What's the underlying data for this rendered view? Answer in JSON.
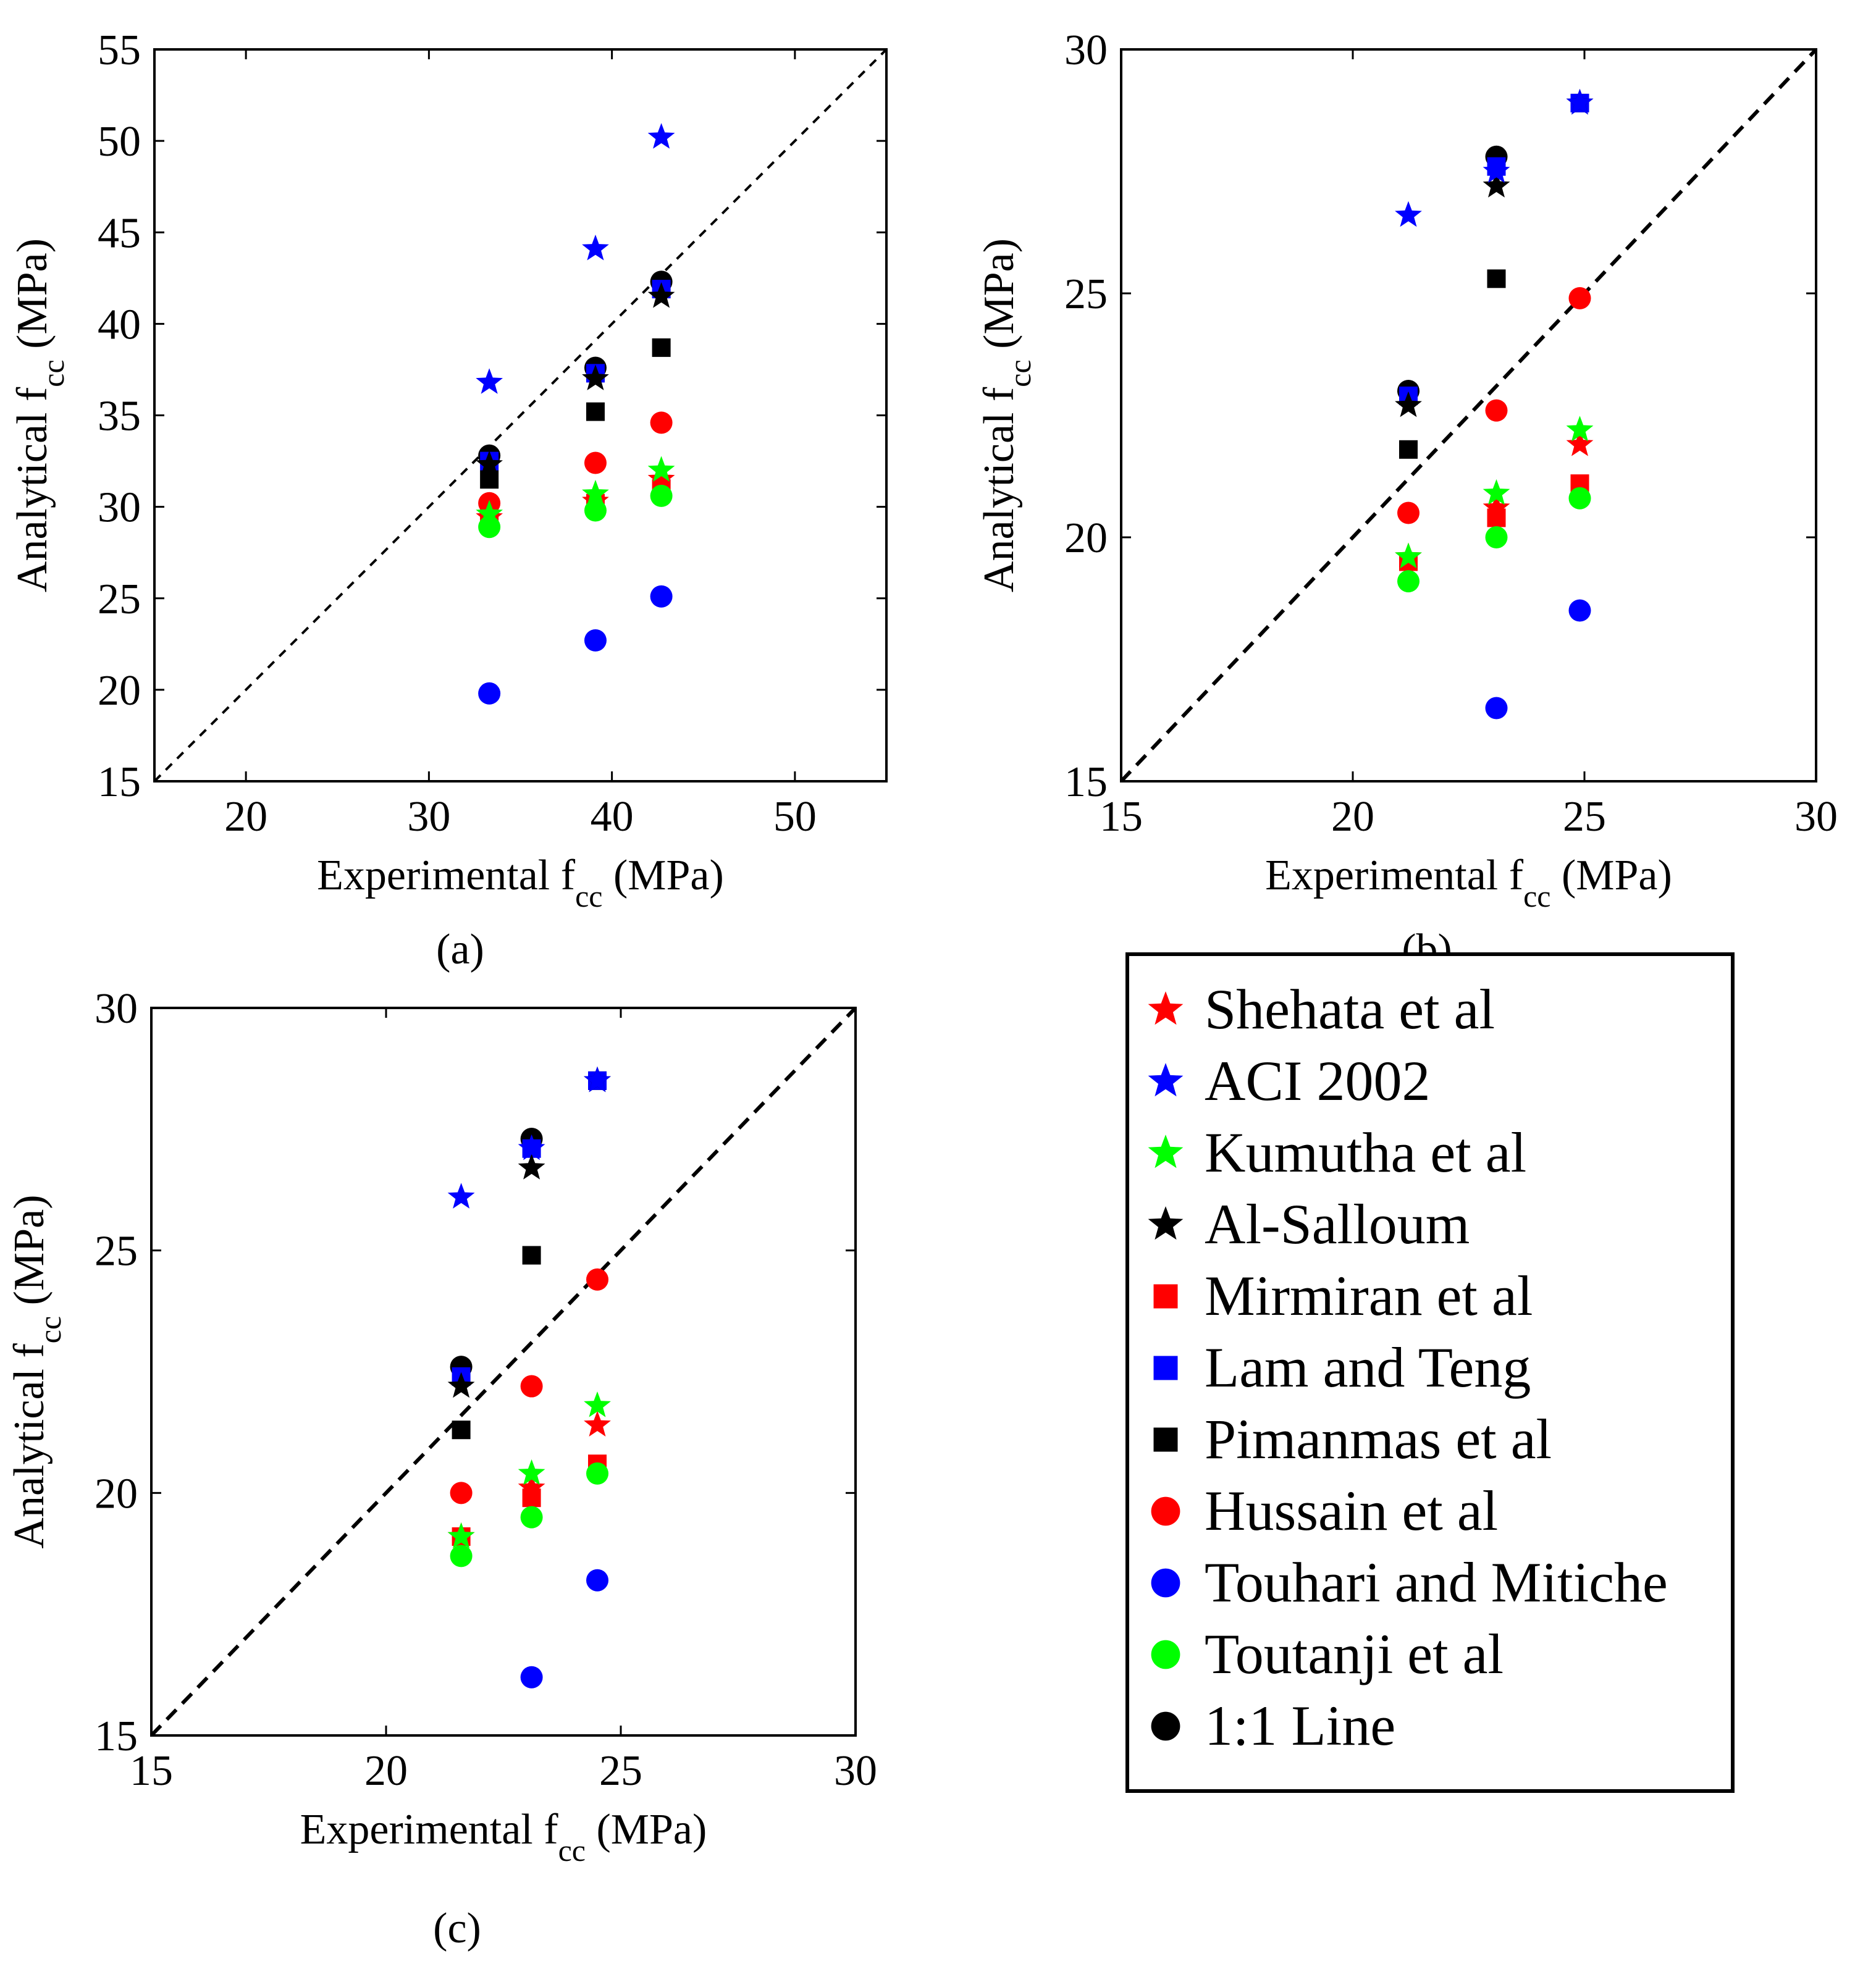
{
  "legend": {
    "entries": [
      {
        "label": "Shehata et al",
        "marker": "star",
        "color": "#ff0000"
      },
      {
        "label": "ACI 2002",
        "marker": "star",
        "color": "#0000ff"
      },
      {
        "label": "Kumutha et al",
        "marker": "star",
        "color": "#00ff00"
      },
      {
        "label": "Al-Salloum",
        "marker": "star",
        "color": "#000000"
      },
      {
        "label": "Mirmiran et al",
        "marker": "square",
        "color": "#ff0000"
      },
      {
        "label": "Lam and Teng",
        "marker": "square",
        "color": "#0000ff"
      },
      {
        "label": "Pimanmas et al",
        "marker": "square",
        "color": "#000000"
      },
      {
        "label": "Hussain et al",
        "marker": "circle",
        "color": "#ff0000"
      },
      {
        "label": "Touhari and Mitiche",
        "marker": "circle",
        "color": "#0000ff"
      },
      {
        "label": "Toutanji et al",
        "marker": "circle",
        "color": "#00ff00"
      },
      {
        "label": "1:1 Line",
        "marker": "circle",
        "color": "#000000"
      }
    ]
  },
  "chart_data": [
    {
      "type": "scatter",
      "caption": "(a)",
      "xlabel": "Experimental f",
      "xlabel_sub": "cc",
      "xlabel_unit": " (MPa)",
      "ylabel": "Analytical f",
      "ylabel_sub": "cc",
      "ylabel_unit": " (MPa)",
      "xlim": [
        15,
        55
      ],
      "ylim": [
        15,
        55
      ],
      "xticks": [
        20,
        30,
        40,
        50
      ],
      "yticks": [
        15,
        20,
        25,
        30,
        35,
        40,
        45,
        50,
        55
      ],
      "diagonal": true,
      "series": [
        {
          "name": "Shehata et al",
          "x": [
            33.3,
            39.1,
            42.7
          ],
          "y": [
            29.4,
            30.3,
            31.5
          ]
        },
        {
          "name": "ACI 2002",
          "x": [
            33.3,
            39.1,
            42.7
          ],
          "y": [
            36.8,
            44.1,
            50.2
          ]
        },
        {
          "name": "Kumutha et al",
          "x": [
            33.3,
            39.1,
            42.7
          ],
          "y": [
            29.6,
            30.7,
            32.0
          ]
        },
        {
          "name": "Al-Salloum",
          "x": [
            33.3,
            39.1,
            42.7
          ],
          "y": [
            32.3,
            37.0,
            41.5
          ]
        },
        {
          "name": "Mirmiran et al",
          "x": [
            33.3,
            39.1,
            42.7
          ],
          "y": [
            29.3,
            30.2,
            31.0
          ]
        },
        {
          "name": "Lam and Teng",
          "x": [
            33.3,
            39.1,
            42.7
          ],
          "y": [
            32.5,
            37.3,
            41.9
          ]
        },
        {
          "name": "Pimanmas et al",
          "x": [
            33.3,
            39.1,
            42.7
          ],
          "y": [
            31.5,
            35.2,
            38.7
          ]
        },
        {
          "name": "Hussain et al",
          "x": [
            33.3,
            39.1,
            42.7
          ],
          "y": [
            30.2,
            32.4,
            34.6
          ]
        },
        {
          "name": "Touhari and Mitiche",
          "x": [
            33.3,
            39.1,
            42.7
          ],
          "y": [
            19.8,
            22.7,
            25.1
          ]
        },
        {
          "name": "Toutanji et al",
          "x": [
            33.3,
            39.1,
            42.7
          ],
          "y": [
            28.9,
            29.8,
            30.6
          ]
        },
        {
          "name": "1:1 Line",
          "x": [
            33.3,
            39.1,
            42.7
          ],
          "y": [
            32.8,
            37.6,
            42.3
          ]
        }
      ]
    },
    {
      "type": "scatter",
      "caption": "(b)",
      "xlabel": "Experimental f",
      "xlabel_sub": "cc",
      "xlabel_unit": " (MPa)",
      "ylabel": "Analytical f",
      "ylabel_sub": "cc",
      "ylabel_unit": " (MPa)",
      "xlim": [
        15,
        30
      ],
      "ylim": [
        15,
        30
      ],
      "xticks": [
        15,
        20,
        25,
        30
      ],
      "yticks": [
        15,
        20,
        25,
        30
      ],
      "diagonal": true,
      "series": [
        {
          "name": "Shehata et al",
          "x": [
            21.2,
            23.1,
            24.9
          ],
          "y": [
            19.6,
            20.6,
            21.9
          ]
        },
        {
          "name": "ACI 2002",
          "x": [
            21.2,
            23.1,
            24.9
          ],
          "y": [
            26.6,
            27.5,
            28.9
          ]
        },
        {
          "name": "Kumutha et al",
          "x": [
            21.2,
            23.1,
            24.9
          ],
          "y": [
            19.6,
            20.9,
            22.2
          ]
        },
        {
          "name": "Al-Salloum",
          "x": [
            21.2,
            23.1,
            24.9
          ],
          "y": [
            22.7,
            27.2,
            28.9
          ]
        },
        {
          "name": "Mirmiran et al",
          "x": [
            21.2,
            23.1,
            24.9
          ],
          "y": [
            19.5,
            20.4,
            21.1
          ]
        },
        {
          "name": "Lam and Teng",
          "x": [
            21.2,
            23.1,
            24.9
          ],
          "y": [
            22.9,
            27.6,
            28.9
          ]
        },
        {
          "name": "Pimanmas et al",
          "x": [
            21.2,
            23.1,
            24.9
          ],
          "y": [
            21.8,
            25.3,
            28.9
          ]
        },
        {
          "name": "Hussain et al",
          "x": [
            21.2,
            23.1,
            24.9
          ],
          "y": [
            20.5,
            22.6,
            24.9
          ]
        },
        {
          "name": "Touhari and Mitiche",
          "x": [
            23.1,
            24.9
          ],
          "y": [
            16.5,
            18.5
          ]
        },
        {
          "name": "Toutanji et al",
          "x": [
            21.2,
            23.1,
            24.9
          ],
          "y": [
            19.1,
            20.0,
            20.8
          ]
        },
        {
          "name": "1:1 Line",
          "x": [
            21.2,
            23.1
          ],
          "y": [
            23.0,
            27.8
          ]
        }
      ]
    },
    {
      "type": "scatter",
      "caption": "(c)",
      "xlabel": "Experimental f",
      "xlabel_sub": "cc",
      "xlabel_unit": " (MPa)",
      "ylabel": "Analytical f",
      "ylabel_sub": "cc",
      "ylabel_unit": " (MPa)",
      "xlim": [
        15,
        30
      ],
      "ylim": [
        15,
        30
      ],
      "xticks": [
        15,
        20,
        25,
        30
      ],
      "yticks": [
        15,
        20,
        25,
        30
      ],
      "diagonal": true,
      "series": [
        {
          "name": "Shehata et al",
          "x": [
            21.6,
            23.1,
            24.5
          ],
          "y": [
            19.1,
            20.1,
            21.4
          ]
        },
        {
          "name": "ACI 2002",
          "x": [
            21.6,
            23.1,
            24.5
          ],
          "y": [
            26.1,
            27.1,
            28.5
          ]
        },
        {
          "name": "Kumutha et al",
          "x": [
            21.6,
            23.1,
            24.5
          ],
          "y": [
            19.1,
            20.4,
            21.8
          ]
        },
        {
          "name": "Al-Salloum",
          "x": [
            21.6,
            23.1,
            24.5
          ],
          "y": [
            22.2,
            26.7,
            28.5
          ]
        },
        {
          "name": "Mirmiran et al",
          "x": [
            21.6,
            23.1,
            24.5
          ],
          "y": [
            19.1,
            19.9,
            20.6
          ]
        },
        {
          "name": "Lam and Teng",
          "x": [
            21.6,
            23.1,
            24.5
          ],
          "y": [
            22.4,
            27.1,
            28.5
          ]
        },
        {
          "name": "Pimanmas et al",
          "x": [
            21.6,
            23.1,
            24.5
          ],
          "y": [
            21.3,
            24.9,
            28.5
          ]
        },
        {
          "name": "Hussain et al",
          "x": [
            21.6,
            23.1,
            24.5
          ],
          "y": [
            20.0,
            22.2,
            24.4
          ]
        },
        {
          "name": "Touhari and Mitiche",
          "x": [
            23.1,
            24.5
          ],
          "y": [
            16.2,
            18.2
          ]
        },
        {
          "name": "Toutanji et al",
          "x": [
            21.6,
            23.1,
            24.5
          ],
          "y": [
            18.7,
            19.5,
            20.4
          ]
        },
        {
          "name": "1:1 Line",
          "x": [
            21.6,
            23.1
          ],
          "y": [
            22.6,
            27.3
          ]
        }
      ]
    }
  ]
}
